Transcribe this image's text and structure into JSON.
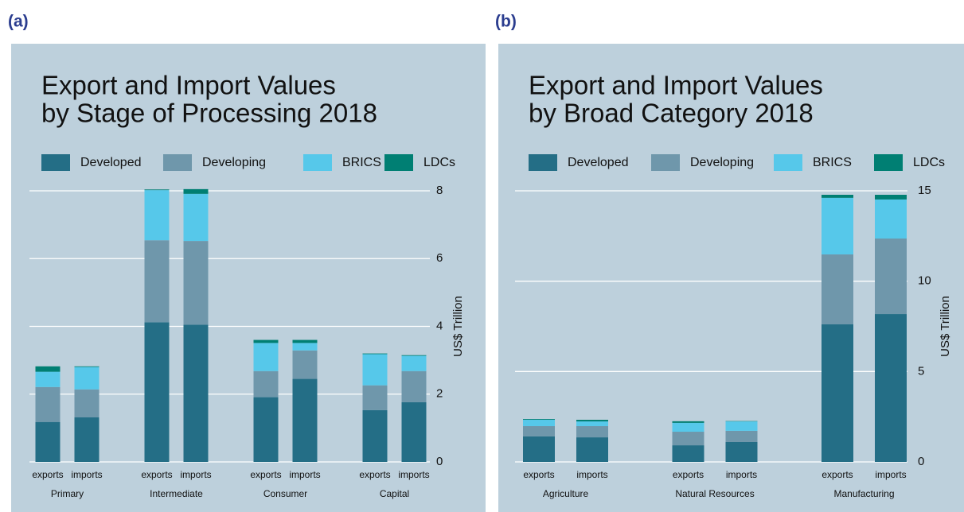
{
  "chart_data": [
    {
      "type": "bar",
      "panel": "(a)",
      "title": [
        "Export and Import Values",
        "by Stage of Processing 2018"
      ],
      "ylabel": "US$ Trillion",
      "categories": [
        "exports",
        "imports",
        "exports",
        "imports",
        "exports",
        "imports",
        "exports",
        "imports"
      ],
      "groups": [
        "Primary",
        "Intermediate",
        "Consumer",
        "Capital"
      ],
      "series": [
        {
          "name": "Developed",
          "color": "#246e86",
          "values": [
            1.18,
            1.32,
            4.12,
            4.05,
            1.91,
            2.45,
            1.53,
            1.76
          ]
        },
        {
          "name": "Developing",
          "color": "#6f97ab",
          "values": [
            1.03,
            0.82,
            2.42,
            2.47,
            0.77,
            0.84,
            0.73,
            0.92
          ]
        },
        {
          "name": "BRICS",
          "color": "#56c8ea",
          "values": [
            0.45,
            0.66,
            1.48,
            1.39,
            0.83,
            0.22,
            0.92,
            0.45
          ]
        },
        {
          "name": "LDCs",
          "color": "#007f73",
          "values": [
            0.16,
            0.02,
            0.02,
            0.14,
            0.09,
            0.09,
            0.02,
            0.02
          ]
        }
      ],
      "ylim": [
        0,
        8
      ],
      "yticks": [
        0,
        2,
        4,
        6,
        8
      ],
      "grid": true,
      "stacked": true
    },
    {
      "type": "bar",
      "panel": "(b)",
      "title": [
        "Export and Import Values",
        "by Broad Category 2018"
      ],
      "ylabel": "US$ Trillion",
      "categories": [
        "exports",
        "imports",
        "exports",
        "imports",
        "exports",
        "imports"
      ],
      "groups": [
        "Agriculture",
        "Natural Resources",
        "Manufacturing"
      ],
      "series": [
        {
          "name": "Developed",
          "color": "#246e86",
          "values": [
            1.41,
            1.36,
            0.92,
            1.1,
            7.61,
            8.18
          ]
        },
        {
          "name": "Developing",
          "color": "#6f97ab",
          "values": [
            0.57,
            0.62,
            0.75,
            0.62,
            3.87,
            4.18
          ]
        },
        {
          "name": "BRICS",
          "color": "#56c8ea",
          "values": [
            0.35,
            0.26,
            0.49,
            0.52,
            3.13,
            2.16
          ]
        },
        {
          "name": "LDCs",
          "color": "#007f73",
          "values": [
            0.04,
            0.09,
            0.09,
            0.02,
            0.17,
            0.26
          ]
        }
      ],
      "ylim": [
        0,
        15
      ],
      "yticks": [
        0,
        5,
        10,
        15
      ],
      "grid": true,
      "stacked": true
    }
  ]
}
